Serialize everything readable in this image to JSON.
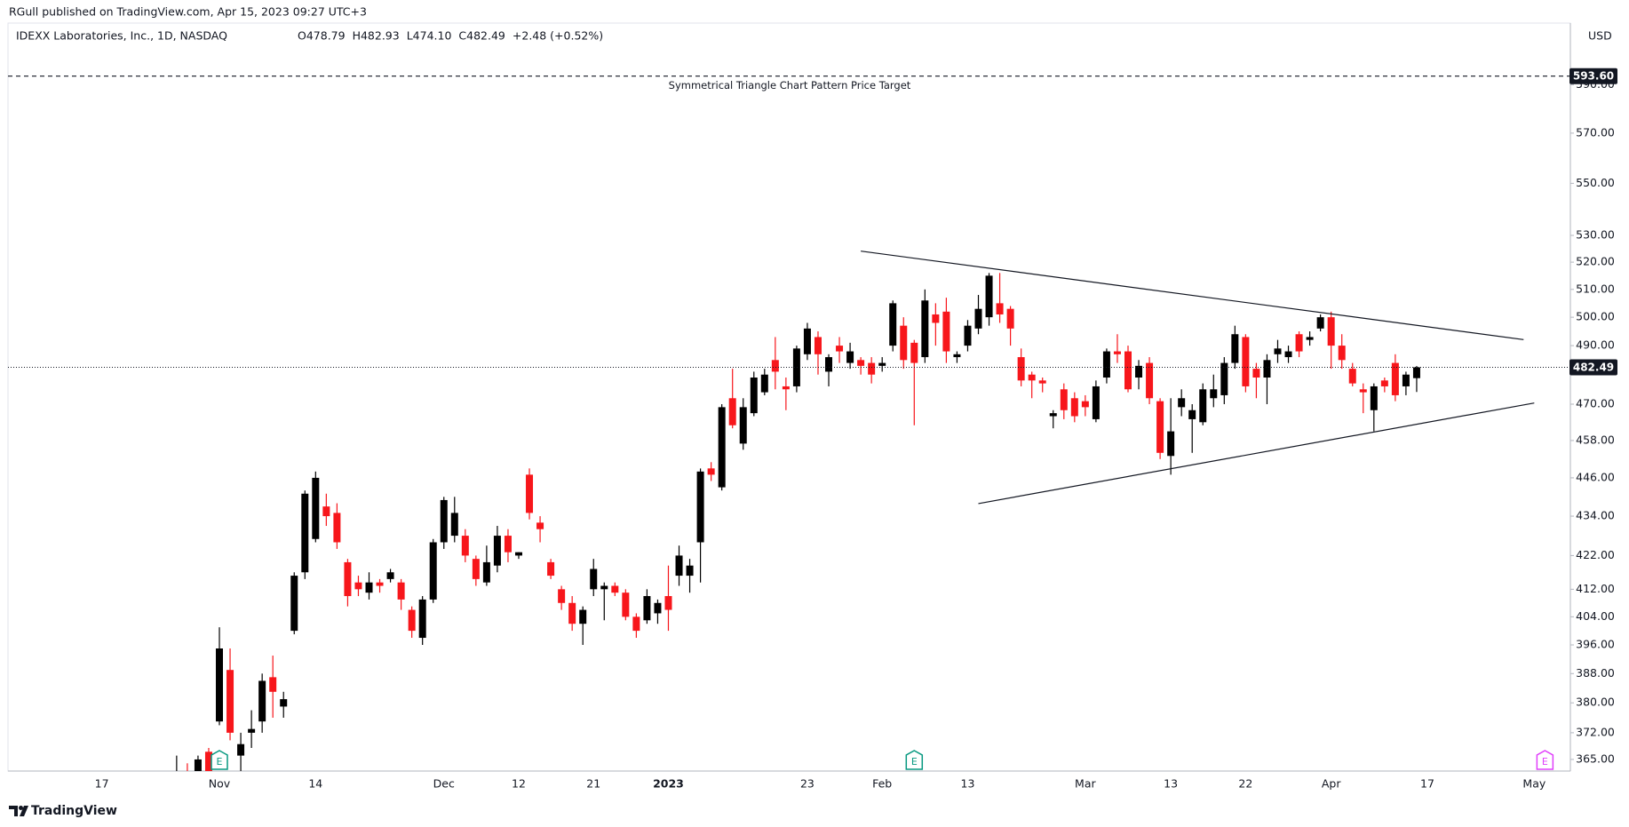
{
  "header": {
    "publisher": "RGull published on TradingView.com, Apr 15, 2023 09:27 UTC+3",
    "symbol": "IDEXX Laboratories, Inc., 1D, NASDAQ",
    "quote": [
      "O478.79",
      "H482.93",
      "L474.10",
      "C482.49",
      "+2.48 (+0.52%)"
    ],
    "currency": "USD"
  },
  "footer": {
    "brand": "TradingView"
  },
  "chart_data": {
    "type": "candlestick",
    "categories": [
      "17",
      null,
      null,
      null,
      null,
      null,
      null,
      null,
      null,
      null,
      null,
      "Nov",
      null,
      null,
      null,
      null,
      null,
      null,
      null,
      null,
      "14",
      null,
      null,
      null,
      null,
      null,
      null,
      null,
      null,
      null,
      null,
      null,
      "Dec",
      null,
      null,
      null,
      null,
      null,
      null,
      "12",
      null,
      null,
      null,
      null,
      null,
      null,
      "21",
      null,
      null,
      null,
      null,
      null,
      null,
      "2023",
      null,
      null,
      null,
      null,
      null,
      null,
      null,
      null,
      null,
      null,
      null,
      null,
      "23",
      null,
      null,
      null,
      null,
      null,
      null,
      "Feb",
      null,
      null,
      null,
      null,
      null,
      null,
      null,
      "13",
      null,
      null,
      null,
      null,
      null,
      null,
      null,
      null,
      null,
      null,
      "Mar",
      null,
      null,
      null,
      null,
      null,
      null,
      null,
      "13",
      null,
      null,
      null,
      null,
      null,
      null,
      "22",
      null,
      null,
      null,
      null,
      null,
      null,
      null,
      "Apr",
      null,
      null,
      null,
      null,
      null,
      null,
      null,
      null,
      "17",
      null,
      null,
      null,
      null,
      null,
      null,
      null,
      null,
      null,
      "May"
    ],
    "open": [
      null,
      null,
      null,
      null,
      null,
      null,
      null,
      360,
      361,
      362,
      367,
      375,
      389,
      366,
      372,
      375,
      387,
      379,
      400,
      417,
      427,
      437,
      435,
      420,
      414,
      411,
      414,
      415,
      414,
      406,
      398,
      409,
      426,
      428,
      428,
      421,
      414,
      419,
      428,
      422,
      447,
      432,
      420,
      412,
      408,
      402,
      412,
      412,
      413,
      411,
      404,
      403,
      405,
      410,
      416,
      416,
      426,
      449,
      443,
      472,
      457,
      467,
      474,
      485,
      476,
      476,
      487,
      493,
      481,
      490,
      484,
      485,
      484,
      483,
      490,
      497,
      491,
      486,
      501,
      502,
      486,
      490,
      496,
      500,
      505,
      503,
      486,
      480,
      478,
      466,
      475,
      472,
      471,
      465,
      479,
      488,
      488,
      479,
      484,
      471,
      453,
      469,
      465,
      464,
      472,
      473,
      484,
      493,
      482,
      479,
      487,
      486,
      494,
      492,
      496,
      500,
      490,
      482,
      475,
      468,
      478,
      484,
      476,
      478.79,
      null,
      null,
      null,
      null,
      null,
      null,
      null,
      null,
      null,
      null,
      null
    ],
    "high": [
      null,
      null,
      null,
      null,
      null,
      null,
      null,
      366,
      364,
      366,
      368,
      401,
      395,
      372,
      378,
      388,
      393,
      383,
      417,
      442,
      448,
      441,
      438,
      421,
      416,
      417,
      415,
      418,
      415,
      407,
      410,
      427,
      440,
      440,
      430,
      422,
      425,
      431,
      430,
      423,
      449,
      434,
      421,
      413,
      410,
      407,
      421,
      414,
      414,
      412,
      405,
      412,
      409,
      419,
      425,
      421,
      449,
      451,
      470,
      482,
      472,
      481,
      482,
      493,
      479,
      490,
      498,
      495,
      487,
      493,
      491,
      486,
      486,
      486,
      506,
      500,
      492,
      510,
      505,
      507,
      488,
      499,
      508,
      516,
      516,
      504,
      489,
      481,
      479,
      468,
      477,
      474,
      473,
      478,
      489,
      494,
      490,
      485,
      486,
      472,
      472,
      475,
      470,
      477,
      480,
      486,
      497,
      494,
      484,
      487,
      492,
      490,
      495,
      495,
      501,
      502,
      494,
      484,
      477,
      477,
      479,
      487,
      481,
      482.93,
      null,
      null,
      null,
      null,
      null,
      null,
      null,
      null,
      null,
      null,
      null
    ],
    "low": [
      null,
      null,
      null,
      null,
      null,
      null,
      null,
      355,
      356,
      358,
      355,
      374,
      370,
      362,
      368,
      372,
      376,
      376,
      399,
      415,
      426,
      431,
      424,
      407,
      410,
      409,
      411,
      414,
      406,
      398,
      396,
      408,
      424,
      426,
      420,
      413,
      413,
      417,
      420,
      421,
      433,
      426,
      415,
      406,
      400,
      396,
      410,
      403,
      410,
      403,
      398,
      402,
      402,
      400,
      413,
      411,
      414,
      445,
      442,
      462,
      455,
      466,
      473,
      475,
      468,
      474,
      485,
      480,
      476,
      484,
      482,
      480,
      477,
      481,
      488,
      482,
      463,
      484,
      490,
      484,
      484,
      488,
      494,
      497,
      498,
      490,
      476,
      472,
      474,
      462,
      465,
      464,
      466,
      464,
      477,
      484,
      474,
      475,
      470,
      452,
      447,
      466,
      454,
      463,
      469,
      470,
      482,
      474,
      472,
      470,
      484,
      484,
      486,
      490,
      495,
      482,
      482,
      476,
      467,
      461,
      474,
      471,
      473,
      474.1,
      null,
      null,
      null,
      null,
      null,
      null,
      null,
      null,
      null,
      null,
      null
    ],
    "close": [
      null,
      null,
      null,
      null,
      null,
      null,
      null,
      362,
      358,
      365,
      360,
      395,
      372,
      369,
      373,
      386,
      383,
      381,
      416,
      441,
      446,
      434,
      426,
      410,
      412,
      414,
      413,
      417,
      409,
      400,
      409,
      426,
      439,
      435,
      422,
      415,
      420,
      428,
      423,
      423,
      435,
      430,
      416,
      408,
      402,
      406,
      418,
      413,
      411,
      404,
      400,
      410,
      408,
      406,
      422,
      419,
      448,
      447,
      469,
      463,
      469,
      479,
      480,
      481,
      475,
      489,
      496,
      487,
      486,
      488,
      488,
      483,
      480,
      484,
      505,
      485,
      484,
      506,
      498,
      488,
      487,
      497,
      503,
      515,
      501,
      496,
      478,
      478,
      477,
      467,
      468,
      466,
      469,
      476,
      488,
      487,
      475,
      483,
      472,
      454,
      461,
      472,
      468,
      475,
      475,
      484,
      494,
      476,
      479,
      485,
      489,
      488,
      488,
      493,
      500,
      490,
      485,
      477,
      474,
      476,
      476,
      473,
      480,
      482.49,
      null,
      null,
      null,
      null,
      null,
      null,
      null,
      null,
      null,
      null,
      null
    ],
    "up_color": "#000000",
    "down_color": "#f7161b",
    "ylim": [
      362,
      606
    ],
    "log_scale": true,
    "grid": false,
    "yticks": [
      {
        "value": 365,
        "label": "365.00"
      },
      {
        "value": 372,
        "label": "372.00"
      },
      {
        "value": 380,
        "label": "380.00"
      },
      {
        "value": 388,
        "label": "388.00"
      },
      {
        "value": 396,
        "label": "396.00"
      },
      {
        "value": 404,
        "label": "404.00"
      },
      {
        "value": 412,
        "label": "412.00"
      },
      {
        "value": 422,
        "label": "422.00"
      },
      {
        "value": 434,
        "label": "434.00"
      },
      {
        "value": 446,
        "label": "446.00"
      },
      {
        "value": 458,
        "label": "458.00"
      },
      {
        "value": 470,
        "label": "470.00"
      },
      {
        "value": 490,
        "label": "490.00"
      },
      {
        "value": 500,
        "label": "500.00"
      },
      {
        "value": 510,
        "label": "510.00"
      },
      {
        "value": 520,
        "label": "520.00"
      },
      {
        "value": 530,
        "label": "530.00"
      },
      {
        "value": 550,
        "label": "550.00"
      },
      {
        "value": 570,
        "label": "570.00"
      },
      {
        "value": 590,
        "label": "590.00"
      }
    ],
    "target_line": {
      "value": 593.6,
      "label": "593.60",
      "text": "Symmetrical Triangle Chart Pattern Price Target"
    },
    "last_price": {
      "value": 482.49,
      "label": "482.49"
    },
    "trendlines": [
      {
        "x": [
          71,
          133
        ],
        "y": [
          524.1,
          492.1
        ]
      },
      {
        "x": [
          82,
          134
        ],
        "y": [
          437.9,
          470.4
        ]
      }
    ],
    "events": [
      {
        "index": 11,
        "label": "E",
        "color": "#089981"
      },
      {
        "index": 76,
        "label": "E",
        "color": "#089981"
      },
      {
        "index": 135,
        "label": "E",
        "color": "#e040fb"
      }
    ]
  }
}
